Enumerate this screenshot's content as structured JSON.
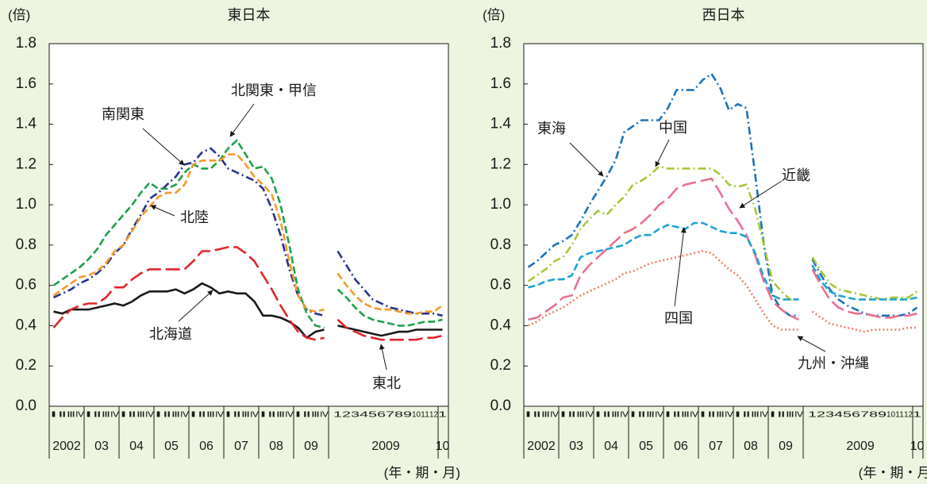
{
  "chart_data": [
    {
      "type": "line",
      "title": "東日本",
      "y_unit": "(倍)",
      "x_unit": "(年・期・月)",
      "categories": [
        "Ⅰ",
        "Ⅱ",
        "Ⅲ",
        "Ⅳ",
        "Ⅰ",
        "Ⅱ",
        "Ⅲ",
        "Ⅳ",
        "Ⅰ",
        "Ⅱ",
        "Ⅲ",
        "Ⅳ",
        "Ⅰ",
        "Ⅱ",
        "Ⅲ",
        "Ⅳ",
        "Ⅰ",
        "Ⅱ",
        "Ⅲ",
        "Ⅳ",
        "Ⅰ",
        "Ⅱ",
        "Ⅲ",
        "Ⅳ",
        "Ⅰ",
        "Ⅱ",
        "Ⅲ",
        "Ⅳ",
        "Ⅰ",
        "Ⅱ",
        "Ⅲ",
        "Ⅳ",
        "1",
        "2",
        "3",
        "4",
        "5",
        "6",
        "7",
        "8",
        "9",
        "10",
        "11",
        "12",
        "1"
      ],
      "year_labels": [
        "2002",
        "03",
        "04",
        "05",
        "06",
        "07",
        "08",
        "09",
        "2009",
        "10"
      ],
      "ylim": [
        0,
        1.8
      ],
      "yticks": [
        {
          "value": 0,
          "label": "0.0"
        },
        0.2,
        0.4,
        0.6,
        0.8,
        {
          "value": 1,
          "label": "1.0"
        },
        1.2,
        1.4,
        1.6,
        1.8
      ],
      "series": [
        {
          "name": "北海道",
          "color": "#1a1a1a",
          "style": "solid",
          "values": [
            0.47,
            0.46,
            0.48,
            0.48,
            0.48,
            0.49,
            0.5,
            0.51,
            0.5,
            0.52,
            0.55,
            0.57,
            0.57,
            0.57,
            0.58,
            0.56,
            0.58,
            0.61,
            0.59,
            0.56,
            0.57,
            0.56,
            0.56,
            0.52,
            0.45,
            0.45,
            0.44,
            0.42,
            0.39,
            0.34,
            0.37,
            0.38,
            0.4,
            0.39,
            0.38,
            0.37,
            0.36,
            0.35,
            0.36,
            0.37,
            0.37,
            0.38,
            0.38,
            0.38,
            0.38
          ]
        },
        {
          "name": "東北",
          "color": "#e0262b",
          "style": "longdash",
          "values": [
            0.39,
            0.44,
            0.48,
            0.5,
            0.51,
            0.51,
            0.54,
            0.59,
            0.59,
            0.63,
            0.66,
            0.68,
            0.68,
            0.68,
            0.68,
            0.68,
            0.72,
            0.77,
            0.77,
            0.78,
            0.79,
            0.79,
            0.76,
            0.72,
            0.65,
            0.58,
            0.5,
            0.43,
            0.37,
            0.34,
            0.33,
            0.34,
            0.43,
            0.39,
            0.37,
            0.35,
            0.34,
            0.33,
            0.33,
            0.33,
            0.33,
            0.33,
            0.34,
            0.34,
            0.35
          ]
        },
        {
          "name": "南関東",
          "color": "#27348b",
          "style": "dashdot",
          "values": [
            0.54,
            0.56,
            0.58,
            0.61,
            0.63,
            0.66,
            0.7,
            0.76,
            0.8,
            0.88,
            0.95,
            1.03,
            1.06,
            1.1,
            1.14,
            1.2,
            1.21,
            1.26,
            1.28,
            1.24,
            1.18,
            1.16,
            1.14,
            1.12,
            1.08,
            0.98,
            0.85,
            0.68,
            0.55,
            0.48,
            0.46,
            0.45,
            0.77,
            0.7,
            0.63,
            0.58,
            0.53,
            0.51,
            0.49,
            0.48,
            0.47,
            0.46,
            0.46,
            0.46,
            0.45
          ]
        },
        {
          "name": "北関東・甲信",
          "color": "#1fa04a",
          "style": "dashed",
          "values": [
            0.6,
            0.63,
            0.66,
            0.69,
            0.73,
            0.78,
            0.85,
            0.9,
            0.95,
            1.0,
            1.06,
            1.11,
            1.08,
            1.08,
            1.1,
            1.16,
            1.2,
            1.18,
            1.18,
            1.22,
            1.28,
            1.32,
            1.25,
            1.18,
            1.19,
            1.13,
            1.0,
            0.8,
            0.58,
            0.46,
            0.4,
            0.39,
            0.58,
            0.54,
            0.49,
            0.45,
            0.43,
            0.42,
            0.41,
            0.4,
            0.4,
            0.41,
            0.42,
            0.42,
            0.43
          ]
        },
        {
          "name": "北陸",
          "color": "#f39a2b",
          "style": "dashed",
          "values": [
            0.55,
            0.58,
            0.61,
            0.64,
            0.65,
            0.67,
            0.71,
            0.77,
            0.8,
            0.87,
            0.94,
            0.99,
            1.04,
            1.06,
            1.06,
            1.1,
            1.2,
            1.22,
            1.22,
            1.22,
            1.25,
            1.25,
            1.2,
            1.14,
            1.1,
            1.05,
            0.92,
            0.72,
            0.55,
            0.48,
            0.47,
            0.48,
            0.66,
            0.6,
            0.55,
            0.51,
            0.49,
            0.48,
            0.48,
            0.47,
            0.46,
            0.46,
            0.47,
            0.47,
            0.5
          ]
        }
      ]
    },
    {
      "type": "line",
      "title": "西日本",
      "y_unit": "(倍)",
      "x_unit": "(年・期・月)",
      "categories": [
        "Ⅰ",
        "Ⅱ",
        "Ⅲ",
        "Ⅳ",
        "Ⅰ",
        "Ⅱ",
        "Ⅲ",
        "Ⅳ",
        "Ⅰ",
        "Ⅱ",
        "Ⅲ",
        "Ⅳ",
        "Ⅰ",
        "Ⅱ",
        "Ⅲ",
        "Ⅳ",
        "Ⅰ",
        "Ⅱ",
        "Ⅲ",
        "Ⅳ",
        "Ⅰ",
        "Ⅱ",
        "Ⅲ",
        "Ⅳ",
        "Ⅰ",
        "Ⅱ",
        "Ⅲ",
        "Ⅳ",
        "Ⅰ",
        "Ⅱ",
        "Ⅲ",
        "Ⅳ",
        "1",
        "2",
        "3",
        "4",
        "5",
        "6",
        "7",
        "8",
        "9",
        "10",
        "11",
        "12",
        "1"
      ],
      "year_labels": [
        "2002",
        "03",
        "04",
        "05",
        "06",
        "07",
        "08",
        "09",
        "2009",
        "10"
      ],
      "ylim": [
        0,
        1.8
      ],
      "yticks": [
        {
          "value": 0,
          "label": "0.0"
        },
        0.2,
        0.4,
        0.6,
        0.8,
        {
          "value": 1,
          "label": "1.0"
        },
        1.2,
        1.4,
        1.6,
        1.8
      ],
      "series": [
        {
          "name": "東海",
          "color": "#1b74b8",
          "style": "dashdot",
          "values": [
            0.69,
            0.72,
            0.76,
            0.8,
            0.82,
            0.85,
            0.92,
            1.0,
            1.07,
            1.14,
            1.22,
            1.36,
            1.39,
            1.42,
            1.42,
            1.42,
            1.48,
            1.57,
            1.57,
            1.57,
            1.62,
            1.65,
            1.58,
            1.47,
            1.5,
            1.48,
            1.15,
            0.8,
            0.55,
            0.48,
            0.45,
            0.45,
            0.73,
            0.65,
            0.58,
            0.53,
            0.5,
            0.48,
            0.46,
            0.45,
            0.45,
            0.45,
            0.45,
            0.46,
            0.49
          ]
        },
        {
          "name": "近畿",
          "color": "#e8728f",
          "style": "longdash",
          "values": [
            0.43,
            0.44,
            0.47,
            0.5,
            0.54,
            0.55,
            0.65,
            0.7,
            0.74,
            0.78,
            0.82,
            0.86,
            0.88,
            0.91,
            0.95,
            1.0,
            1.03,
            1.08,
            1.1,
            1.11,
            1.12,
            1.13,
            1.06,
            0.98,
            0.92,
            0.85,
            0.75,
            0.62,
            0.52,
            0.48,
            0.45,
            0.43,
            0.68,
            0.6,
            0.53,
            0.49,
            0.47,
            0.46,
            0.46,
            0.45,
            0.44,
            0.44,
            0.45,
            0.45,
            0.46
          ]
        },
        {
          "name": "中国",
          "color": "#a6c83a",
          "style": "dashdot",
          "values": [
            0.62,
            0.65,
            0.68,
            0.72,
            0.74,
            0.8,
            0.88,
            0.93,
            0.97,
            0.95,
            1.0,
            1.04,
            1.1,
            1.12,
            1.15,
            1.19,
            1.18,
            1.18,
            1.18,
            1.18,
            1.18,
            1.18,
            1.15,
            1.1,
            1.09,
            1.1,
            0.98,
            0.8,
            0.62,
            0.57,
            0.53,
            0.53,
            0.74,
            0.67,
            0.61,
            0.58,
            0.57,
            0.56,
            0.55,
            0.54,
            0.53,
            0.54,
            0.54,
            0.54,
            0.57
          ]
        },
        {
          "name": "四国",
          "color": "#1fa3d0",
          "style": "dashed",
          "values": [
            0.59,
            0.6,
            0.62,
            0.63,
            0.63,
            0.65,
            0.74,
            0.76,
            0.77,
            0.78,
            0.79,
            0.8,
            0.83,
            0.85,
            0.85,
            0.88,
            0.9,
            0.89,
            0.88,
            0.91,
            0.91,
            0.89,
            0.87,
            0.86,
            0.86,
            0.84,
            0.76,
            0.64,
            0.55,
            0.53,
            0.53,
            0.53,
            0.7,
            0.62,
            0.57,
            0.55,
            0.54,
            0.53,
            0.53,
            0.53,
            0.53,
            0.53,
            0.53,
            0.53,
            0.54
          ]
        },
        {
          "name": "九州・沖縄",
          "color": "#f0826a",
          "style": "dotted",
          "values": [
            0.4,
            0.42,
            0.45,
            0.47,
            0.49,
            0.52,
            0.55,
            0.57,
            0.59,
            0.61,
            0.63,
            0.66,
            0.67,
            0.69,
            0.71,
            0.72,
            0.73,
            0.74,
            0.75,
            0.76,
            0.77,
            0.76,
            0.72,
            0.68,
            0.65,
            0.6,
            0.53,
            0.46,
            0.4,
            0.38,
            0.38,
            0.38,
            0.47,
            0.44,
            0.41,
            0.4,
            0.39,
            0.38,
            0.37,
            0.38,
            0.38,
            0.38,
            0.38,
            0.39,
            0.39
          ]
        }
      ]
    }
  ]
}
